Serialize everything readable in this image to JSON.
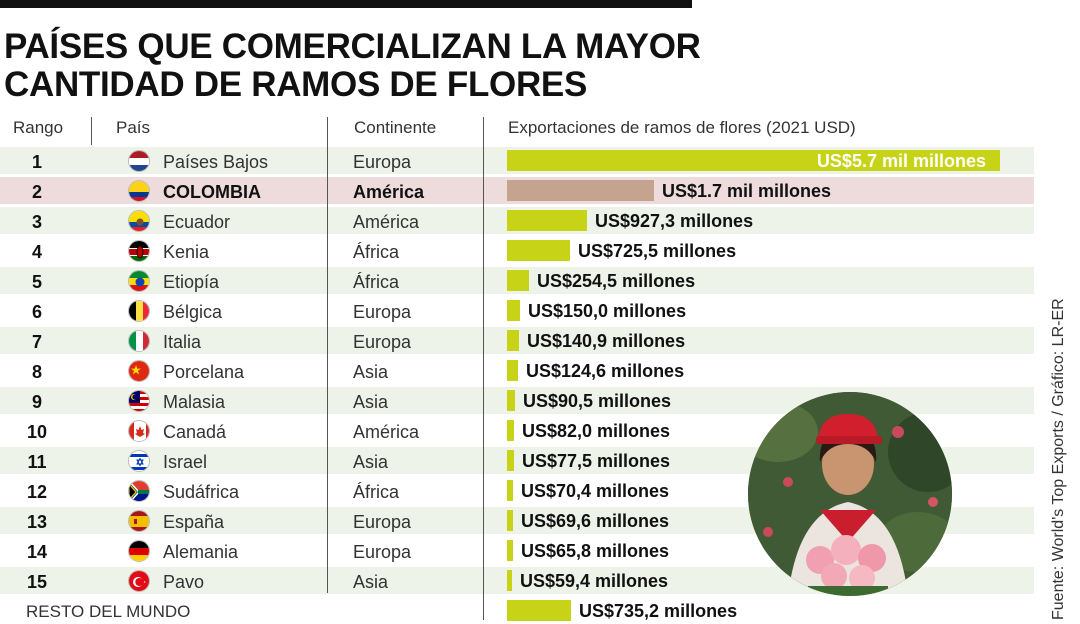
{
  "title_lines": [
    "PAÍSES QUE COMERCIALIZAN LA MAYOR",
    "CANTIDAD DE RAMOS DE FLORES"
  ],
  "headers": {
    "rank": "Rango",
    "country": "País",
    "continent": "Continente",
    "exports": "Exportaciones de ramos de flores (2021 USD)"
  },
  "source": "Fuente: World's Top Exports / Gráfico: LR-ER",
  "colors": {
    "bar": "#c6d316",
    "highlight_bar": "#c4a48f",
    "highlight_row": "#eedcdc",
    "stripe": "#edf3e8"
  },
  "chart_data": {
    "type": "bar",
    "orientation": "horizontal",
    "unit": "USD (2021)",
    "rows": [
      {
        "rank": "1",
        "country": "Países Bajos",
        "continent": "Europa",
        "value": 5700000000,
        "label": "US$5.7 mil millones",
        "flag": "netherlands-flag"
      },
      {
        "rank": "2",
        "country": "COLOMBIA",
        "continent": "América",
        "value": 1700000000,
        "label": "US$1.7 mil millones",
        "flag": "colombia-flag",
        "highlight": true
      },
      {
        "rank": "3",
        "country": "Ecuador",
        "continent": "América",
        "value": 927300000,
        "label": "US$927,3 millones",
        "flag": "ecuador-flag"
      },
      {
        "rank": "4",
        "country": "Kenia",
        "continent": "África",
        "value": 725500000,
        "label": "US$725,5 millones",
        "flag": "kenya-flag"
      },
      {
        "rank": "5",
        "country": "Etiopía",
        "continent": "África",
        "value": 254500000,
        "label": "US$254,5 millones",
        "flag": "ethiopia-flag"
      },
      {
        "rank": "6",
        "country": "Bélgica",
        "continent": "Europa",
        "value": 150000000,
        "label": "US$150,0 millones",
        "flag": "belgium-flag"
      },
      {
        "rank": "7",
        "country": "Italia",
        "continent": "Europa",
        "value": 140900000,
        "label": "US$140,9 millones",
        "flag": "italy-flag"
      },
      {
        "rank": "8",
        "country": "Porcelana",
        "continent": "Asia",
        "value": 124600000,
        "label": "US$124,6 millones",
        "flag": "china-flag"
      },
      {
        "rank": "9",
        "country": "Malasia",
        "continent": "Asia",
        "value": 90500000,
        "label": "US$90,5 millones",
        "flag": "malaysia-flag"
      },
      {
        "rank": "10",
        "country": "Canadá",
        "continent": "América",
        "value": 82000000,
        "label": "US$82,0 millones",
        "flag": "canada-flag"
      },
      {
        "rank": "11",
        "country": "Israel",
        "continent": "Asia",
        "value": 77500000,
        "label": "US$77,5 millones",
        "flag": "israel-flag"
      },
      {
        "rank": "12",
        "country": "Sudáfrica",
        "continent": "África",
        "value": 70400000,
        "label": "US$70,4 millones",
        "flag": "south-africa-flag"
      },
      {
        "rank": "13",
        "country": "España",
        "continent": "Europa",
        "value": 69600000,
        "label": "US$69,6 millones",
        "flag": "spain-flag"
      },
      {
        "rank": "14",
        "country": "Alemania",
        "continent": "Europa",
        "value": 65800000,
        "label": "US$65,8 millones",
        "flag": "germany-flag"
      },
      {
        "rank": "15",
        "country": "Pavo",
        "continent": "Asia",
        "value": 59400000,
        "label": "US$59,4 millones",
        "flag": "turkey-flag"
      }
    ],
    "rest": {
      "label_text": "RESTO DEL MUNDO",
      "value": 735200000,
      "label": "US$735,2 millones"
    }
  }
}
